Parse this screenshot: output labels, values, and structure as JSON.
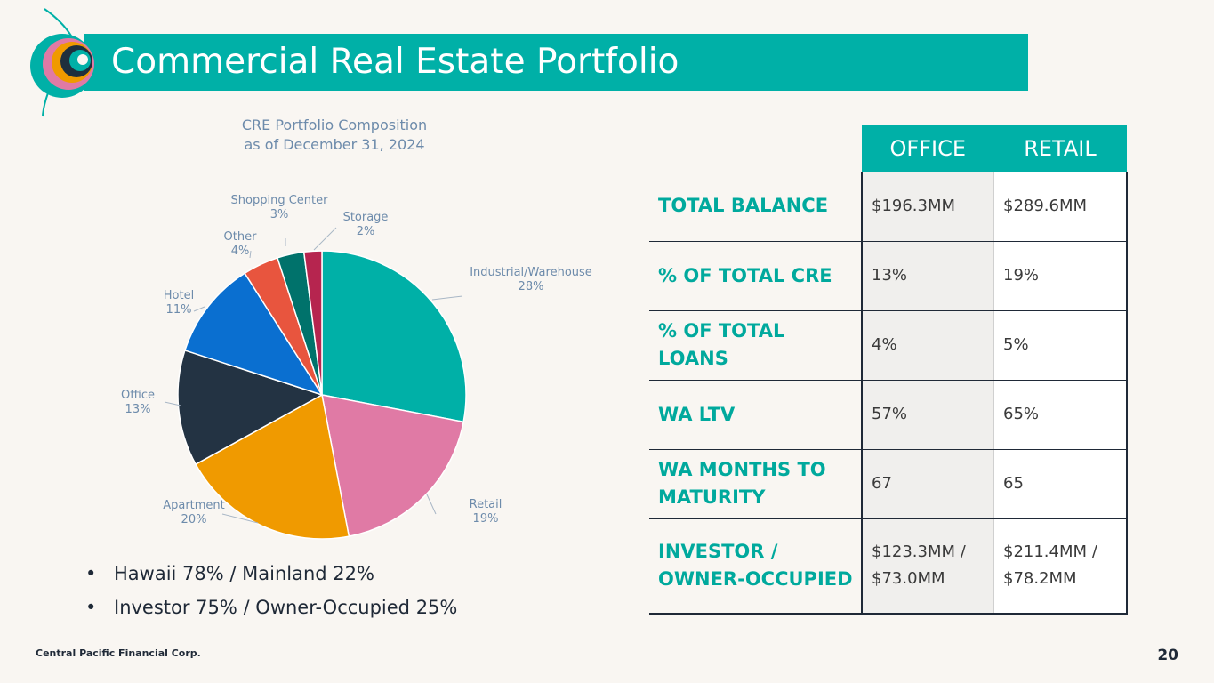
{
  "header": {
    "title": "Commercial Real Estate Portfolio"
  },
  "chart_data": {
    "type": "pie",
    "title_lines": [
      "CRE Portfolio Composition",
      "as of December 31, 2024"
    ],
    "categories": [
      "Industrial/Warehouse",
      "Retail",
      "Apartment",
      "Office",
      "Hotel",
      "Other",
      "Shopping Center",
      "Storage"
    ],
    "values": [
      28,
      19,
      20,
      13,
      11,
      4,
      3,
      2
    ],
    "labels": [
      "28%",
      "19%",
      "20%",
      "13%",
      "11%",
      "4%",
      "3%",
      "2%"
    ],
    "colors": [
      "#00b0a7",
      "#e07aa5",
      "#f09a00",
      "#233343",
      "#0a6fd0",
      "#e8553e",
      "#00726b",
      "#b6254f"
    ],
    "label_color": "#6d8bab"
  },
  "bullets": [
    "Hawaii 78% / Mainland 22%",
    "Investor 75% / Owner-Occupied 25%"
  ],
  "table": {
    "columns": [
      "OFFICE",
      "RETAIL"
    ],
    "rows": [
      {
        "label": "TOTAL BALANCE",
        "office": "$196.3MM",
        "retail": "$289.6MM"
      },
      {
        "label": "% OF TOTAL CRE",
        "office": "13%",
        "retail": "19%"
      },
      {
        "label": "% OF TOTAL LOANS",
        "office": "4%",
        "retail": "5%"
      },
      {
        "label": "WA LTV",
        "office": "57%",
        "retail": "65%"
      },
      {
        "label": "WA MONTHS TO MATURITY",
        "office": "67",
        "retail": "65"
      },
      {
        "label": "INVESTOR / OWNER-OCCUPIED",
        "office": "$123.3MM / $73.0MM",
        "retail": "$211.4MM / $78.2MM"
      }
    ]
  },
  "footer": {
    "company": "Central Pacific Financial Corp.",
    "page_number": "20"
  },
  "theme": {
    "teal": "#00b0a7",
    "background": "#f9f6f2"
  }
}
